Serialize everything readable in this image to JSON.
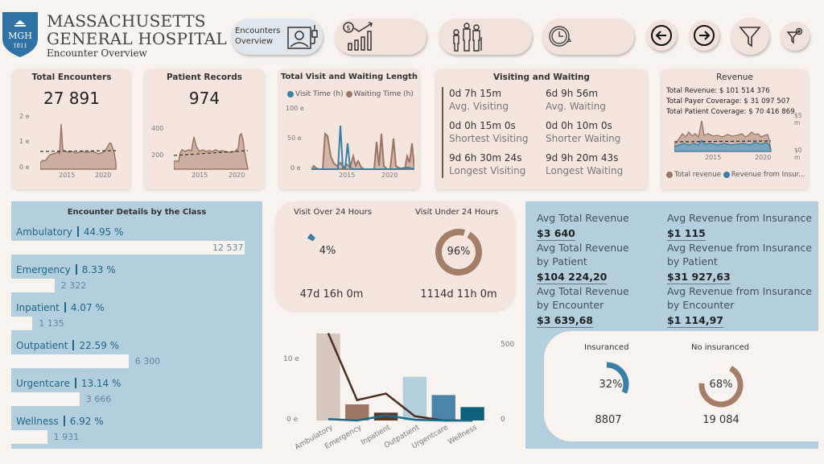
{
  "header": {
    "logo": {
      "initials": "MGH",
      "year": "1811"
    },
    "title_line1": "MASSACHUSETTS",
    "title_line2": "GENERAL HOSPITAL",
    "subtitle": "Encounter Overview"
  },
  "nav": {
    "items": [
      {
        "label": "Encounters\nOverview",
        "label_line1": "Encounters",
        "label_line2": "Overview",
        "icon": "patient-bed-icon",
        "active": true
      },
      {
        "label": "",
        "icon": "revenue-growth-icon",
        "active": false
      },
      {
        "label": "",
        "icon": "patients-age-icon",
        "active": false
      },
      {
        "label": "",
        "icon": "clock-history-icon",
        "active": false
      }
    ],
    "buttons": [
      {
        "name": "back",
        "icon": "arrow-left-circle-icon"
      },
      {
        "name": "forward",
        "icon": "arrow-right-circle-icon"
      },
      {
        "name": "filter",
        "icon": "filter-icon"
      },
      {
        "name": "clear-filter",
        "icon": "filter-clear-icon"
      }
    ]
  },
  "kpis": {
    "total_encounters": {
      "title": "Total Encounters",
      "value": "27 891",
      "y_ticks": [
        "2 e",
        "1 e",
        "0 e"
      ],
      "x_ticks": [
        "2015",
        "2020"
      ]
    },
    "patient_records": {
      "title": "Patient Records",
      "value": "974",
      "y_ticks": [
        "400",
        "200"
      ],
      "x_ticks": [
        "2015",
        "2020"
      ]
    }
  },
  "visit_waiting_chart": {
    "title": "Total Visit and Waiting Length",
    "legend": [
      {
        "label": "Visit Time (h)",
        "color": "#3a7fa6"
      },
      {
        "label": "Waiting Time (h)",
        "color": "#9c7564"
      }
    ],
    "y_ticks": [
      "100 e",
      "50 e",
      "0 e"
    ],
    "x_ticks": [
      "2015",
      "2020"
    ]
  },
  "visiting_waiting": {
    "title": "Visiting and Waiting",
    "stats": [
      {
        "value": "0d 7h 15m",
        "label": "Avg. Visiting"
      },
      {
        "value": "6d 9h 56m",
        "label": "Avg. Waiting"
      },
      {
        "value": "0d 0h 15m 0s",
        "label": "Shortest Visiting"
      },
      {
        "value": "0d 0h 10m 0s",
        "label": "Shorter Waiting"
      },
      {
        "value": "9d 6h 30m 24s",
        "label": "Longest Visiting"
      },
      {
        "value": "9d 9h 20m 43s",
        "label": "Longest Waiting"
      }
    ]
  },
  "revenue": {
    "title": "Revenue",
    "lines": [
      "Total Revenue: $ 101 514 376",
      "Total Payer Coverage: $ 31 097 507",
      "Total Patient Coverage: $ 70 416 869"
    ],
    "y_ticks": [
      "$5 m",
      "$0 m"
    ],
    "x_ticks": [
      "2015",
      "2020"
    ],
    "legend": [
      {
        "label": "Total revenue",
        "color": "#9c7564"
      },
      {
        "label": "Revenue from Insur...",
        "color": "#3a7fa6"
      }
    ]
  },
  "class_details": {
    "title": "Encounter Details by the Class",
    "max_count": 12537,
    "rows": [
      {
        "name": "Ambulatory",
        "pct": "44.95 %",
        "count": "12 537",
        "value": 12537
      },
      {
        "name": "Emergency",
        "pct": "8.33 %",
        "count": "2 322",
        "value": 2322
      },
      {
        "name": "Inpatient",
        "pct": "4.07 %",
        "count": "1 135",
        "value": 1135
      },
      {
        "name": "Outpatient",
        "pct": "22.59 %",
        "count": "6 300",
        "value": 6300
      },
      {
        "name": "Urgentcare",
        "pct": "13.14 %",
        "count": "3 666",
        "value": 3666
      },
      {
        "name": "Wellness",
        "pct": "6.92 %",
        "count": "1 931",
        "value": 1931
      }
    ]
  },
  "visit_24h": {
    "over": {
      "title": "Visit Over 24 Hours",
      "pct_label": "4%",
      "pct": 4,
      "duration": "47d 16h 0m",
      "color": "#3a7fa6"
    },
    "under": {
      "title": "Visit Under 24 Hours",
      "pct_label": "96%",
      "pct": 96,
      "duration": "1114d 11h 0m",
      "color": "#a47e69"
    }
  },
  "chart_data": {
    "type": "bar",
    "title": "",
    "categories": [
      "Ambulatory",
      "Emergency",
      "Inpatient",
      "Outpatient",
      "Urgentcare",
      "Wellness"
    ],
    "series": [
      {
        "name": "Encounters",
        "type": "bar",
        "axis": "left",
        "values": [
          12537,
          2322,
          1135,
          6300,
          3666,
          1931
        ],
        "colors": [
          "#d5c6be",
          "#9c7564",
          "#5a3a26",
          "#b3cedc",
          "#4a84a9",
          "#0e5f7a"
        ]
      },
      {
        "name": "Line A",
        "type": "line",
        "axis": "right",
        "color": "#4a2e20",
        "values": [
          600,
          140,
          185,
          30,
          0,
          0
        ]
      },
      {
        "name": "Line B",
        "type": "line",
        "axis": "right",
        "color": "#1a6a88",
        "values": [
          10,
          0,
          35,
          5,
          0,
          0
        ]
      }
    ],
    "y_left": {
      "ticks": [
        "10 e",
        "0 e"
      ],
      "ylim": [
        0,
        13000
      ]
    },
    "y_right": {
      "ticks": [
        "500",
        "0"
      ],
      "ylim": [
        0,
        620
      ]
    },
    "xlabel": "",
    "ylabel": ""
  },
  "avg_revenue": {
    "left": [
      {
        "label": "Avg Total Revenue",
        "value": "$3 640"
      },
      {
        "label": "Avg Total Revenue\nby Patient",
        "label1": "Avg Total Revenue",
        "label2": "by Patient",
        "value": "$104 224,20"
      },
      {
        "label": "Avg Total Revenue\nby Encounter",
        "label1": "Avg Total Revenue",
        "label2": "by Encounter",
        "value": "$3 639,68"
      }
    ],
    "right": [
      {
        "label": "Avg Revenue from Insurance",
        "value": "$1 115"
      },
      {
        "label": "Avg Revenue from Insurance\nby Patient",
        "label1": "Avg Revenue from Insurance",
        "label2": "by Patient",
        "value": "$31 927,63"
      },
      {
        "label": "Avg Revenue from Insurance\nby Encounter",
        "label1": "Avg Revenue from Insurance",
        "label2": "by Encounter",
        "value": "$1 114,97"
      }
    ]
  },
  "insurance": {
    "insured": {
      "title": "Insuranced",
      "pct_label": "32%",
      "pct": 32,
      "count": "8807",
      "color": "#3a7fa6"
    },
    "uninsured": {
      "title": "No insuranced",
      "pct_label": "68%",
      "pct": 68,
      "count": "19 084",
      "color": "#a47e69"
    }
  }
}
